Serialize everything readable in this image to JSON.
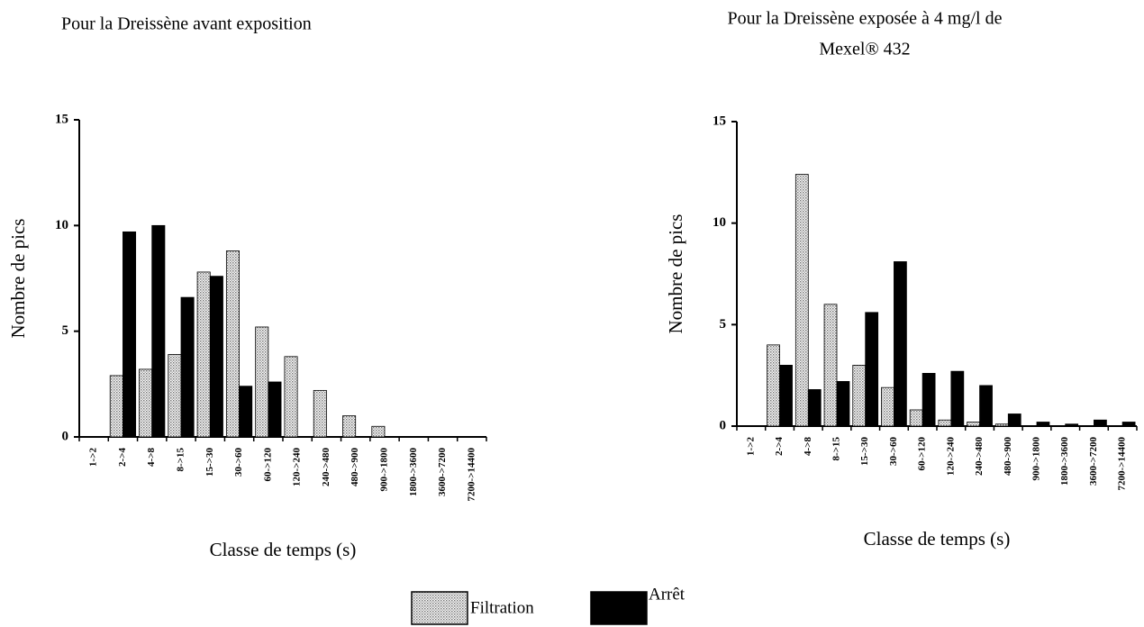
{
  "chart_data": [
    {
      "type": "bar",
      "title": [
        "Pour la Dreissène avant exposition"
      ],
      "xlabel": "Classe de temps (s)",
      "ylabel": "Nombre de pics",
      "categories": [
        "1->2",
        "2->4",
        "4->8",
        "8->15",
        "15->30",
        "30->60",
        "60->120",
        "120->240",
        "240->480",
        "480->900",
        "900->1800",
        "1800->3600",
        "3600->7200",
        "7200->14400"
      ],
      "series": [
        {
          "name": "Filtration",
          "color": "#d4d4d4",
          "values": [
            0,
            2.9,
            3.2,
            3.9,
            7.8,
            8.8,
            5.2,
            3.8,
            2.2,
            1.0,
            0.5,
            0,
            0,
            0
          ]
        },
        {
          "name": "Arrêt",
          "color": "#000000",
          "values": [
            0,
            9.7,
            10.0,
            6.6,
            7.6,
            2.4,
            2.6,
            0,
            0,
            0,
            0,
            0,
            0,
            0
          ]
        }
      ],
      "ylim": [
        0,
        15
      ],
      "yticks": [
        0,
        5,
        10,
        15
      ]
    },
    {
      "type": "bar",
      "title": [
        "Pour la Dreissène exposée à 4 mg/l de",
        "Mexel® 432"
      ],
      "xlabel": "Classe de temps (s)",
      "ylabel": "Nombre de pics",
      "categories": [
        "1->2",
        "2->4",
        "4->8",
        "8->15",
        "15->30",
        "30->60",
        "60->120",
        "120->240",
        "240->480",
        "480->900",
        "900->1800",
        "1800->3600",
        "3600->7200",
        "7200->14400"
      ],
      "series": [
        {
          "name": "Filtration",
          "color": "#d4d4d4",
          "values": [
            0,
            4.0,
            12.4,
            6.0,
            3.0,
            1.9,
            0.8,
            0.3,
            0.2,
            0.1,
            0,
            0,
            0,
            0
          ]
        },
        {
          "name": "Arrêt",
          "color": "#000000",
          "values": [
            0,
            3.0,
            1.8,
            2.2,
            5.6,
            8.1,
            2.6,
            2.7,
            2.0,
            0.6,
            0.2,
            0.1,
            0.3,
            0.2
          ]
        }
      ],
      "ylim": [
        0,
        15
      ],
      "yticks": [
        0,
        5,
        10,
        15
      ]
    }
  ]
}
